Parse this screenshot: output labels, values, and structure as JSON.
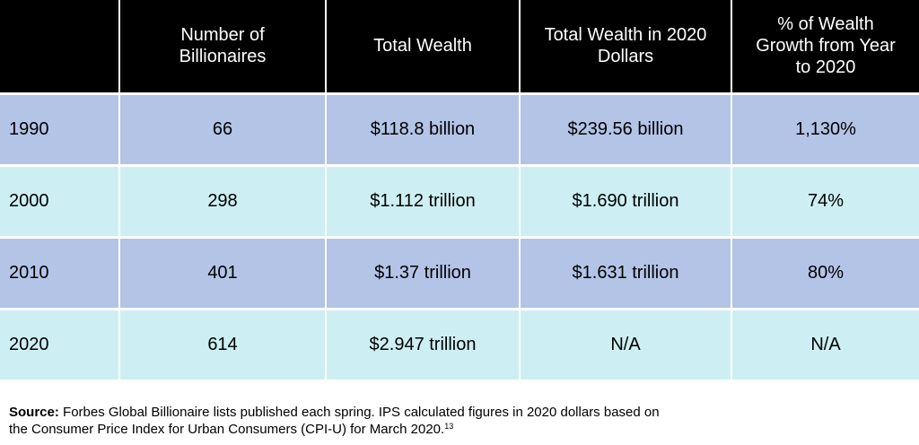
{
  "table": {
    "headers": [
      "",
      "Number of\nBillionaires",
      "Total Wealth",
      "Total Wealth in 2020\nDollars",
      "% of Wealth\nGrowth from Year\nto 2020"
    ],
    "rows": [
      {
        "year": "1990",
        "billionaires": "66",
        "total_wealth": "$118.8 billion",
        "wealth_2020_dollars": "$239.56 billion",
        "growth": "1,130%"
      },
      {
        "year": "2000",
        "billionaires": "298",
        "total_wealth": "$1.112 trillion",
        "wealth_2020_dollars": "$1.690 trillion",
        "growth": "74%"
      },
      {
        "year": "2010",
        "billionaires": "401",
        "total_wealth": "$1.37 trillion",
        "wealth_2020_dollars": "$1.631 trillion",
        "growth": "80%"
      },
      {
        "year": "2020",
        "billionaires": "614",
        "total_wealth": "$2.947 trillion",
        "wealth_2020_dollars": "N/A",
        "growth": "N/A"
      }
    ],
    "colors": {
      "header_bg": "#000000",
      "row_blue": "#b4c4e7",
      "row_cyan": "#cdeff3"
    }
  },
  "source": {
    "label": "Source:",
    "line1": " Forbes Global Billionaire lists published each spring. IPS calculated figures in 2020 dollars based on",
    "line2": "the Consumer Price Index for Urban Consumers (CPI-U) for March 2020.",
    "footnote": "13"
  }
}
